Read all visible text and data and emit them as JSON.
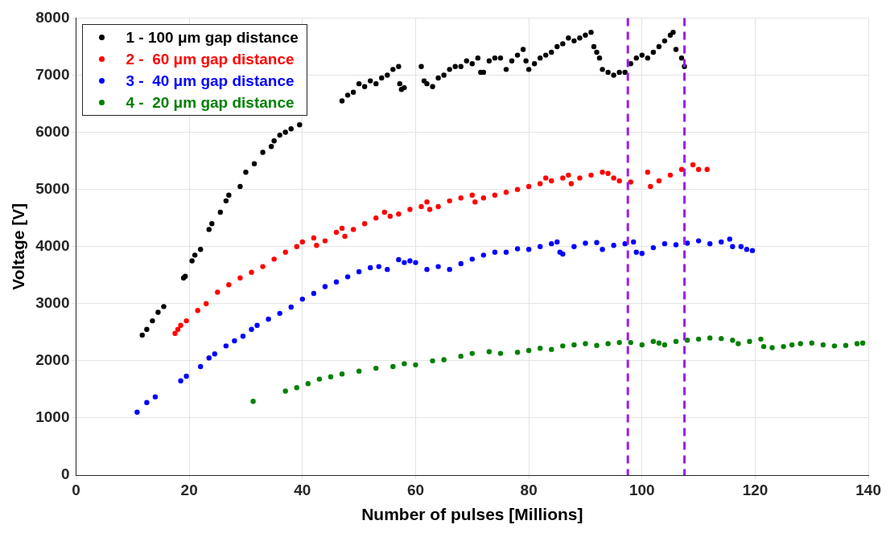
{
  "chart_data": {
    "type": "scatter",
    "xlabel": "Number of pulses [Millions]",
    "ylabel": "Voltage [V]",
    "xlim": [
      0,
      140
    ],
    "xticks": [
      0,
      20,
      40,
      60,
      80,
      100,
      120,
      140
    ],
    "ylim": [
      0,
      8000
    ],
    "yticks": [
      0,
      1000,
      2000,
      3000,
      4000,
      5000,
      6000,
      7000,
      8000
    ],
    "grid": true,
    "legend": "top left",
    "marker": "circle",
    "ref_lines": [
      {
        "axis": "x",
        "value": 97.5,
        "color": "#9b1cf0",
        "line_style": "dashed"
      },
      {
        "axis": "x",
        "value": 107.5,
        "color": "#9b1cf0",
        "line_style": "dashed"
      }
    ],
    "series": [
      {
        "name": "1 - 100 μm gap distance",
        "color": "#000000",
        "x": [
          11.7,
          12.5,
          13.5,
          14.5,
          15.5,
          19,
          19.3,
          20.5,
          21,
          22,
          23.5,
          24,
          25.5,
          26.5,
          27,
          29,
          30,
          31.5,
          33,
          34.5,
          35,
          36,
          37,
          38,
          39.5,
          47,
          48,
          49,
          50,
          51,
          52,
          53,
          54,
          55,
          56,
          57,
          57.2,
          57.5,
          58,
          61,
          61.5,
          62,
          63,
          64,
          65,
          66,
          67,
          68,
          69,
          70,
          71,
          71.5,
          72,
          73,
          74,
          75,
          76,
          77,
          78,
          79,
          79.5,
          80,
          81,
          82,
          83,
          84,
          85,
          86,
          87,
          88,
          89,
          90,
          91,
          91.5,
          92,
          92.5,
          93,
          94,
          95,
          96,
          97,
          98,
          99,
          100,
          101,
          102,
          103,
          104,
          105,
          105.5,
          106,
          107,
          107.5
        ],
        "values": [
          2450,
          2550,
          2700,
          2850,
          2950,
          3450,
          3480,
          3750,
          3850,
          3950,
          4300,
          4400,
          4600,
          4800,
          4900,
          5050,
          5300,
          5450,
          5650,
          5750,
          5850,
          5950,
          6000,
          6060,
          6130,
          6550,
          6650,
          6700,
          6850,
          6800,
          6900,
          6850,
          6950,
          7000,
          7100,
          7150,
          6850,
          6750,
          6780,
          7150,
          6900,
          6850,
          6800,
          6950,
          7000,
          7100,
          7150,
          7150,
          7250,
          7200,
          7300,
          7050,
          7050,
          7250,
          7300,
          7300,
          7100,
          7250,
          7350,
          7450,
          7250,
          7100,
          7200,
          7300,
          7350,
          7400,
          7500,
          7550,
          7650,
          7600,
          7650,
          7700,
          7750,
          7500,
          7400,
          7300,
          7100,
          7050,
          7000,
          7050,
          7050,
          7200,
          7300,
          7350,
          7300,
          7400,
          7500,
          7600,
          7700,
          7750,
          7450,
          7300,
          7150
        ]
      },
      {
        "name": "2 -  60 μm gap distance",
        "color": "#ff0000",
        "x": [
          17.5,
          18,
          18.5,
          19.5,
          21.5,
          23,
          25,
          27,
          29,
          31,
          33,
          35,
          37,
          39,
          40,
          42,
          42.5,
          44,
          46,
          47,
          47.5,
          49,
          51,
          53,
          54.5,
          55.5,
          57,
          59,
          61,
          62,
          62.5,
          64,
          66,
          68,
          70,
          70.5,
          72,
          74,
          76,
          78,
          80,
          82,
          83,
          84,
          86,
          87,
          87.5,
          89,
          91,
          93,
          94,
          95,
          96,
          98,
          101,
          101.5,
          103,
          105,
          107,
          109,
          110,
          111.5
        ],
        "values": [
          2480,
          2550,
          2620,
          2700,
          2880,
          3000,
          3200,
          3330,
          3450,
          3550,
          3650,
          3780,
          3900,
          4000,
          4080,
          4150,
          4020,
          4100,
          4250,
          4320,
          4180,
          4300,
          4400,
          4500,
          4600,
          4530,
          4570,
          4650,
          4700,
          4780,
          4650,
          4700,
          4800,
          4850,
          4900,
          4780,
          4850,
          4900,
          4950,
          5000,
          5050,
          5100,
          5200,
          5150,
          5200,
          5250,
          5100,
          5200,
          5250,
          5300,
          5280,
          5200,
          5150,
          5130,
          5300,
          5050,
          5150,
          5250,
          5350,
          5430,
          5350,
          5350
        ]
      },
      {
        "name": "3 -  40 μm gap distance",
        "color": "#0000ff",
        "x": [
          10.8,
          12.5,
          14,
          18.5,
          19.5,
          22,
          23.5,
          24.5,
          26.5,
          28,
          29.5,
          31,
          32,
          34,
          36,
          38,
          40,
          42,
          44,
          46,
          48,
          50,
          52,
          53.5,
          55,
          57,
          58,
          59,
          60,
          62,
          64,
          66,
          68,
          70,
          72,
          74,
          76,
          78,
          80,
          82,
          84,
          85,
          85.5,
          86,
          88,
          90,
          92,
          93,
          95,
          97,
          98.5,
          99,
          100,
          102,
          104,
          106,
          108,
          110,
          112,
          114,
          115.5,
          116,
          117.5,
          118.5,
          119.5
        ],
        "values": [
          1100,
          1270,
          1370,
          1650,
          1730,
          1900,
          2050,
          2120,
          2260,
          2350,
          2430,
          2550,
          2620,
          2730,
          2830,
          2940,
          3080,
          3180,
          3300,
          3380,
          3470,
          3560,
          3630,
          3650,
          3600,
          3770,
          3720,
          3750,
          3720,
          3600,
          3650,
          3600,
          3700,
          3780,
          3850,
          3900,
          3900,
          3960,
          3950,
          4000,
          4050,
          4080,
          3900,
          3870,
          4000,
          4060,
          4070,
          3950,
          4020,
          4050,
          4080,
          3900,
          3880,
          3980,
          4050,
          4030,
          4060,
          4100,
          4050,
          4080,
          4130,
          4000,
          4000,
          3950,
          3930
        ]
      },
      {
        "name": "4 -  20 μm gap distance",
        "color": "#008000",
        "x": [
          31.3,
          37,
          39,
          41,
          43,
          45,
          47,
          50,
          53,
          56,
          58,
          60,
          63,
          65,
          68,
          70,
          73,
          75,
          78,
          80,
          82,
          84,
          86,
          88,
          90,
          92,
          94,
          96,
          98,
          100,
          102,
          103,
          104,
          106,
          108,
          110,
          112,
          114,
          116,
          117,
          119,
          121,
          121.5,
          123,
          125,
          126.5,
          128,
          130,
          132,
          134,
          136,
          138,
          139
        ],
        "values": [
          1290,
          1470,
          1530,
          1600,
          1680,
          1720,
          1770,
          1820,
          1870,
          1900,
          1950,
          1930,
          2000,
          2020,
          2080,
          2130,
          2160,
          2130,
          2150,
          2180,
          2220,
          2200,
          2260,
          2280,
          2300,
          2270,
          2300,
          2320,
          2320,
          2280,
          2340,
          2310,
          2280,
          2340,
          2360,
          2380,
          2400,
          2390,
          2360,
          2300,
          2340,
          2380,
          2250,
          2230,
          2250,
          2280,
          2300,
          2310,
          2280,
          2260,
          2270,
          2300,
          2310
        ]
      }
    ]
  }
}
